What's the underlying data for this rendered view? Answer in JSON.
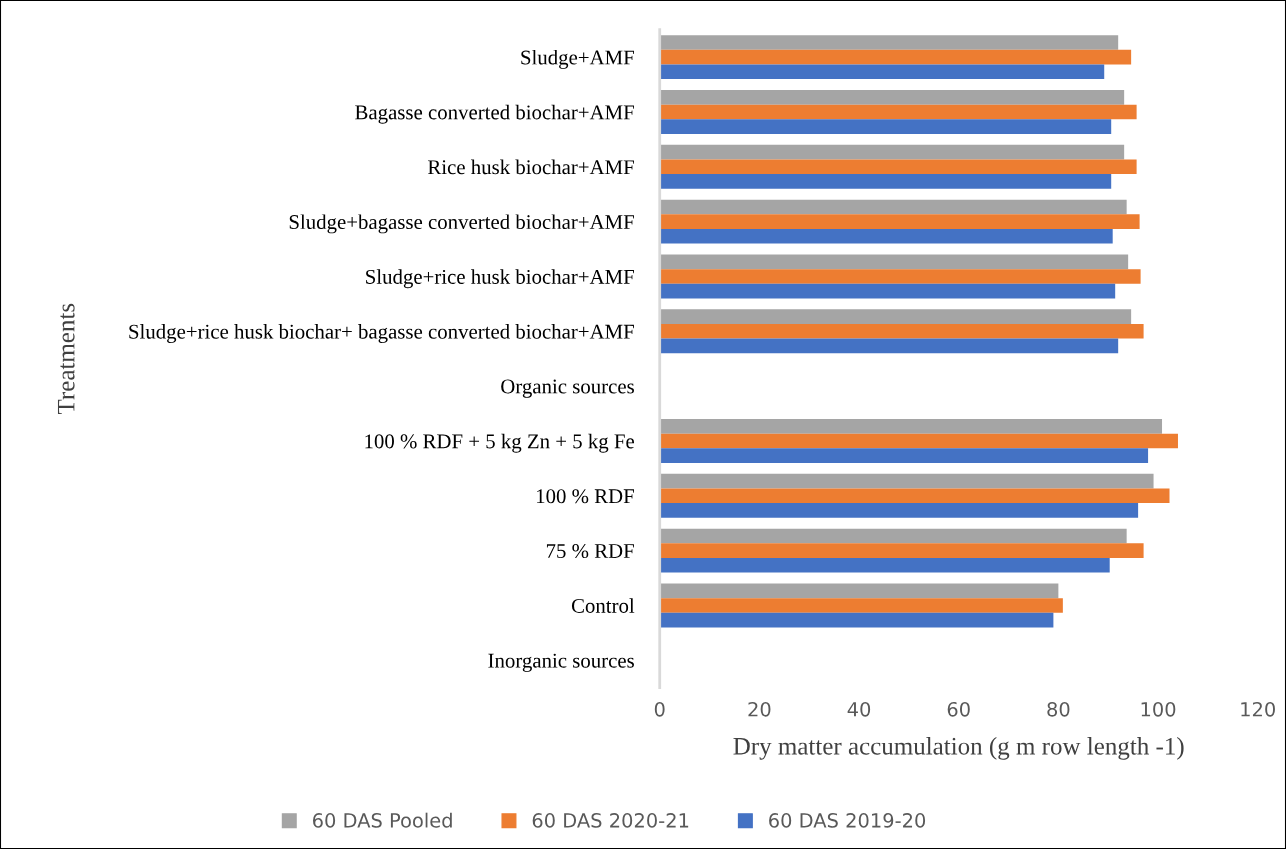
{
  "chart_data": {
    "type": "bar",
    "orientation": "horizontal",
    "xlabel": "Dry matter accumulation (g m row length -1)",
    "ylabel": "Treatments",
    "categories": [
      "Sludge+AMF",
      "Bagasse converted biochar+AMF",
      "Rice husk biochar+AMF",
      "Sludge+bagasse converted biochar+AMF",
      "Sludge+rice husk biochar+AMF",
      "Sludge+rice husk biochar+ bagasse converted biochar+AMF",
      "Organic sources",
      "100 % RDF + 5 kg Zn + 5 kg Fe",
      "100 % RDF",
      "75 % RDF",
      "Control",
      "Inorganic sources"
    ],
    "series": [
      {
        "name": "60 DAS Pooled",
        "color": "#a5a5a5",
        "values": [
          92.0,
          93.2,
          93.2,
          93.7,
          94.0,
          94.6,
          null,
          100.8,
          99.1,
          93.7,
          80.0,
          null
        ]
      },
      {
        "name": "60 DAS 2020-21",
        "color": "#ed7d31",
        "values": [
          94.6,
          95.7,
          95.7,
          96.3,
          96.5,
          97.1,
          null,
          104.0,
          102.3,
          97.1,
          80.9,
          null
        ]
      },
      {
        "name": "60 DAS 2019-20",
        "color": "#4472c4",
        "values": [
          89.2,
          90.6,
          90.6,
          90.9,
          91.4,
          92.0,
          null,
          98.0,
          96.0,
          90.3,
          79.0,
          null
        ]
      }
    ],
    "xlim": [
      0,
      120
    ],
    "xticks": [
      0,
      20,
      40,
      60,
      80,
      100,
      120
    ],
    "grid": false,
    "legend": "bottom"
  }
}
